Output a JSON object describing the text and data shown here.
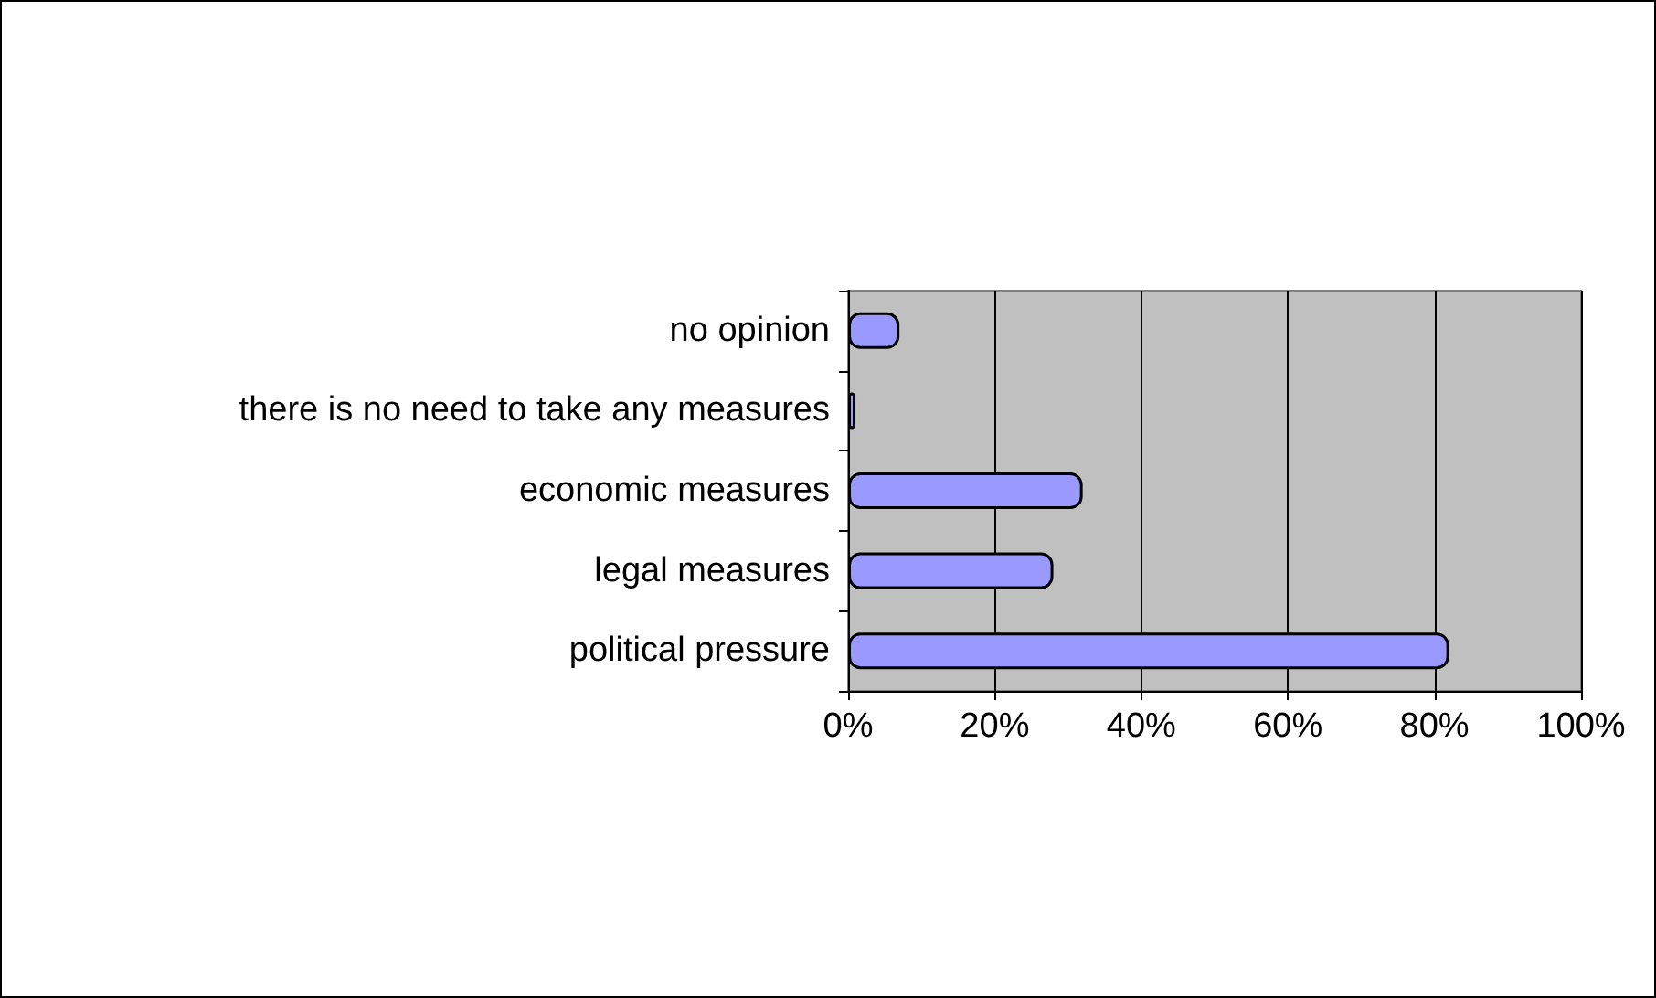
{
  "chart_data": {
    "type": "bar",
    "orientation": "horizontal",
    "categories": [
      "no opinion",
      "there is no need to take any measures",
      "economic measures",
      "legal measures",
      "political pressure"
    ],
    "values": [
      7,
      1,
      32,
      28,
      82
    ],
    "color": "#9999ff",
    "xlim": [
      0,
      100
    ],
    "xticks": [
      {
        "value": 0,
        "label": "0%"
      },
      {
        "value": 20,
        "label": "20%"
      },
      {
        "value": 40,
        "label": "40%"
      },
      {
        "value": 60,
        "label": "60%"
      },
      {
        "value": 80,
        "label": "80%"
      },
      {
        "value": 100,
        "label": "100%"
      }
    ],
    "grid": "x"
  }
}
